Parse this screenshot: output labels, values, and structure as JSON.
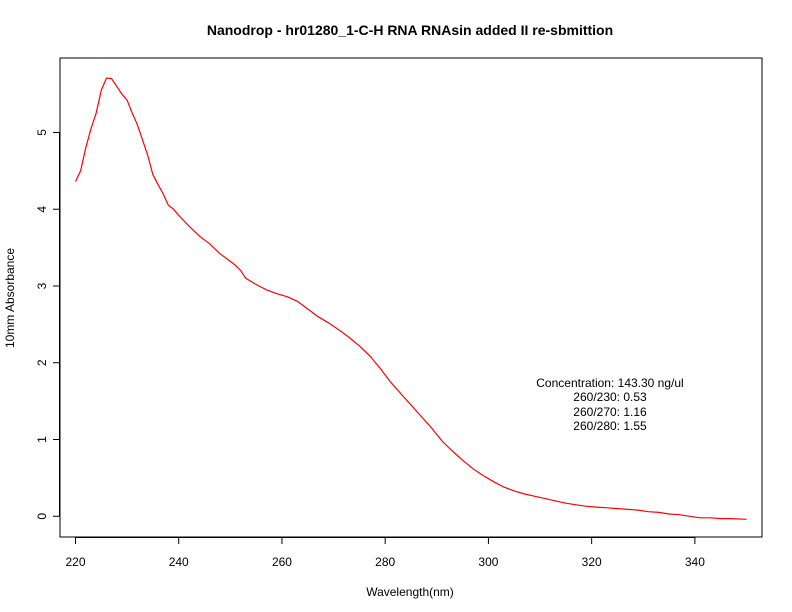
{
  "chart_data": {
    "type": "line",
    "title": "Nanodrop - hr01280_1-C-H RNA RNAsin added II re-sbmittion",
    "xlabel": "Wavelength(nm)",
    "ylabel": "10mm Absorbance",
    "xlim": [
      217,
      353
    ],
    "ylim": [
      -0.27,
      5.97
    ],
    "x_ticks": [
      220,
      240,
      260,
      280,
      300,
      320,
      340
    ],
    "y_ticks": [
      0,
      1,
      2,
      3,
      4,
      5
    ],
    "grid": false,
    "series": [
      {
        "color": "#ff0000",
        "x": [
          220,
          221,
          222,
          223,
          224,
          225,
          226,
          227,
          228,
          229,
          230,
          231,
          232,
          233,
          234,
          235,
          236,
          237,
          238,
          239,
          240,
          242,
          244,
          246,
          248,
          250,
          251,
          252,
          253,
          255,
          257,
          259,
          261,
          263,
          265,
          267,
          269,
          271,
          273,
          275,
          277,
          279,
          281,
          283,
          285,
          287,
          289,
          291,
          293,
          295,
          297,
          299,
          301,
          303,
          305,
          307,
          309,
          311,
          313,
          315,
          317,
          319,
          321,
          323,
          325,
          327,
          329,
          331,
          333,
          335,
          337,
          339,
          341,
          343,
          345,
          347,
          350
        ],
        "y": [
          4.36,
          4.5,
          4.8,
          5.05,
          5.25,
          5.55,
          5.71,
          5.7,
          5.6,
          5.5,
          5.42,
          5.25,
          5.1,
          4.9,
          4.7,
          4.45,
          4.32,
          4.2,
          4.05,
          4.0,
          3.92,
          3.78,
          3.65,
          3.55,
          3.42,
          3.32,
          3.27,
          3.2,
          3.1,
          3.02,
          2.95,
          2.9,
          2.86,
          2.8,
          2.7,
          2.6,
          2.52,
          2.43,
          2.33,
          2.22,
          2.09,
          1.93,
          1.75,
          1.6,
          1.45,
          1.3,
          1.15,
          0.98,
          0.85,
          0.73,
          0.62,
          0.53,
          0.45,
          0.38,
          0.33,
          0.29,
          0.26,
          0.23,
          0.2,
          0.17,
          0.15,
          0.13,
          0.12,
          0.11,
          0.1,
          0.09,
          0.08,
          0.06,
          0.05,
          0.03,
          0.02,
          0.0,
          -0.02,
          -0.02,
          -0.03,
          -0.03,
          -0.04
        ]
      }
    ],
    "annotations": [
      "Concentration: 143.30 ng/ul",
      "260/230: 0.53",
      "260/270: 1.16",
      "260/280: 1.55"
    ]
  }
}
